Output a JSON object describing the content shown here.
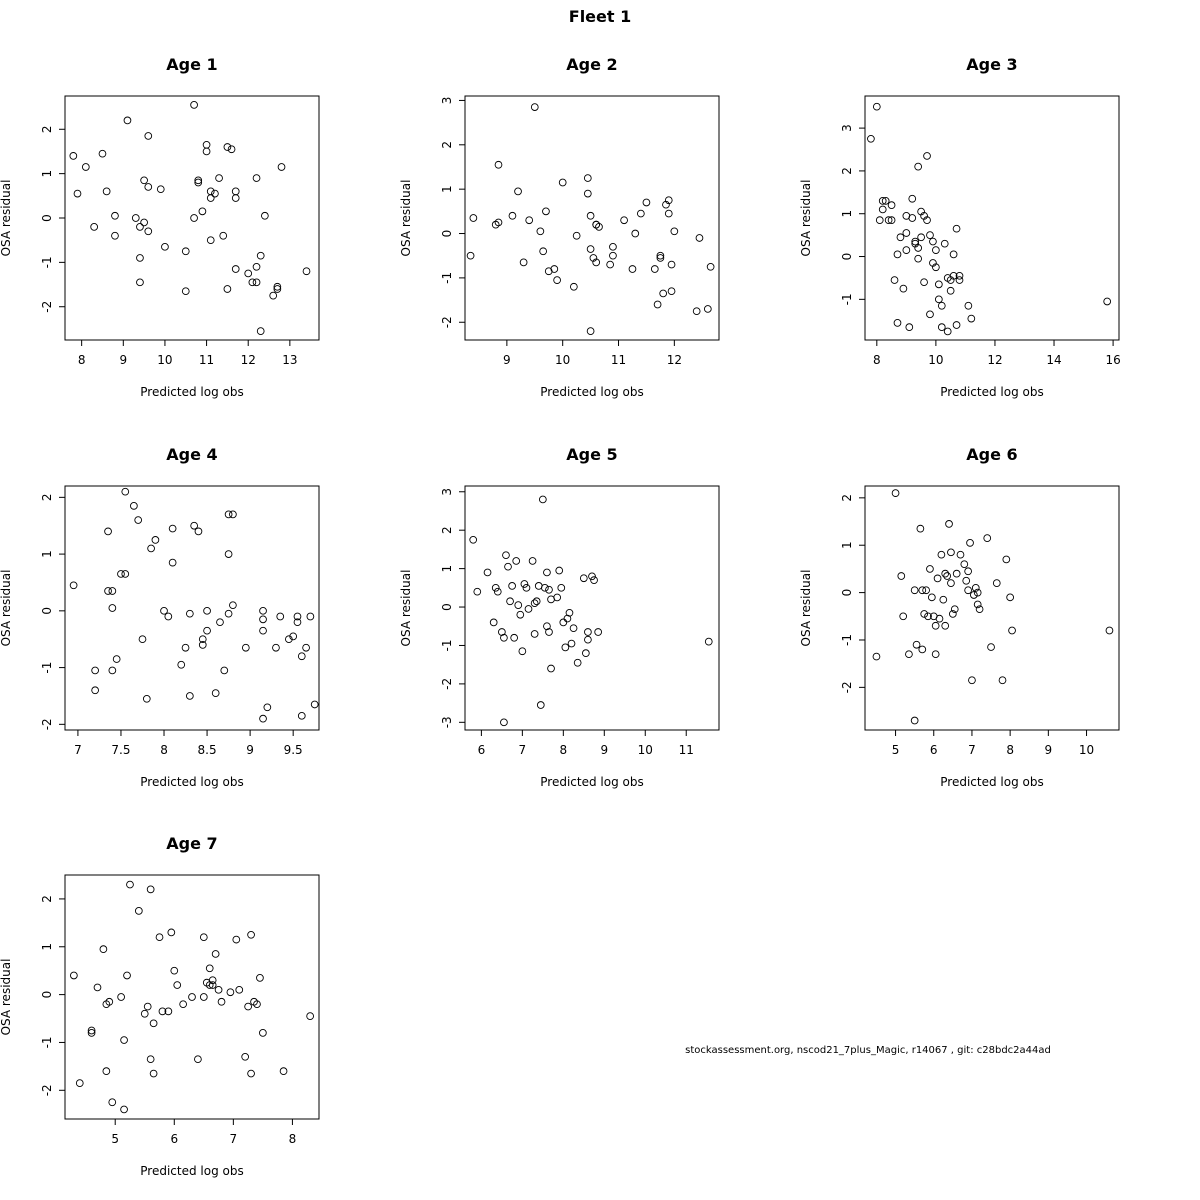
{
  "figure": {
    "title": "Fleet 1",
    "footer": "stockassessment.org, nscod21_7plus_Magic, r14067 , git: c28bdc2a44ad"
  },
  "chart_data": [
    {
      "type": "scatter",
      "title": "Age 1",
      "xlabel": "Predicted log obs",
      "ylabel": "OSA residual",
      "xlim": [
        7.6,
        13.7
      ],
      "ylim": [
        -2.75,
        2.75
      ],
      "xticks": [
        8,
        9,
        10,
        11,
        12,
        13
      ],
      "yticks": [
        -2,
        -1,
        0,
        1,
        2
      ],
      "x": [
        7.8,
        7.9,
        8.1,
        8.5,
        8.6,
        8.3,
        8.8,
        8.8,
        9.1,
        9.3,
        9.5,
        9.4,
        9.5,
        9.6,
        9.6,
        9.6,
        9.9,
        9.4,
        9.4,
        10.0,
        10.5,
        10.5,
        10.7,
        10.8,
        10.8,
        10.7,
        10.9,
        11.0,
        11.0,
        11.1,
        11.2,
        11.3,
        11.1,
        11.1,
        11.4,
        11.5,
        11.5,
        11.6,
        11.7,
        11.7,
        11.7,
        12.0,
        12.1,
        12.2,
        12.2,
        12.3,
        12.2,
        12.3,
        12.4,
        12.6,
        12.7,
        12.7,
        12.8,
        13.4
      ],
      "y": [
        1.4,
        0.55,
        1.15,
        1.45,
        0.6,
        -0.2,
        0.05,
        -0.4,
        2.2,
        0.0,
        0.85,
        -0.2,
        -0.1,
        1.85,
        0.7,
        -0.3,
        0.65,
        -0.9,
        -1.45,
        -0.65,
        -1.65,
        -0.75,
        2.55,
        0.8,
        0.85,
        0.0,
        0.15,
        1.5,
        1.65,
        -0.5,
        0.55,
        0.9,
        0.6,
        0.45,
        -0.4,
        1.6,
        -1.6,
        1.55,
        0.6,
        0.45,
        -1.15,
        -1.25,
        -1.45,
        -1.1,
        0.9,
        -0.85,
        -1.45,
        -2.55,
        0.05,
        -1.75,
        -1.6,
        -1.55,
        1.15,
        -1.2
      ]
    },
    {
      "type": "scatter",
      "title": "Age 2",
      "xlabel": "Predicted log obs",
      "ylabel": "OSA residual",
      "xlim": [
        8.25,
        12.8
      ],
      "ylim": [
        -2.4,
        3.1
      ],
      "xticks": [
        9,
        10,
        11,
        12
      ],
      "yticks": [
        -2,
        -1,
        0,
        1,
        2,
        3
      ],
      "x": [
        8.35,
        8.4,
        8.8,
        8.85,
        8.85,
        9.1,
        9.2,
        9.3,
        9.4,
        9.5,
        9.6,
        9.65,
        9.75,
        9.7,
        9.85,
        9.9,
        10.0,
        10.2,
        10.25,
        10.45,
        10.45,
        10.5,
        10.55,
        10.5,
        10.6,
        10.6,
        10.6,
        10.65,
        10.9,
        10.9,
        10.85,
        11.1,
        11.25,
        11.3,
        11.4,
        11.5,
        11.65,
        11.7,
        11.75,
        11.75,
        11.8,
        11.85,
        11.9,
        11.9,
        11.95,
        11.95,
        12.0,
        12.4,
        12.45,
        12.6,
        12.65,
        10.5
      ],
      "y": [
        -0.5,
        0.35,
        0.2,
        0.25,
        1.55,
        0.4,
        0.95,
        -0.65,
        0.3,
        2.85,
        0.05,
        -0.4,
        -0.85,
        0.5,
        -0.8,
        -1.05,
        1.15,
        -1.2,
        -0.05,
        0.9,
        1.25,
        0.4,
        -0.55,
        -0.35,
        0.2,
        0.2,
        -0.65,
        0.15,
        -0.5,
        -0.3,
        -0.7,
        0.3,
        -0.8,
        0.0,
        0.45,
        0.7,
        -0.8,
        -1.6,
        -0.55,
        -0.5,
        -1.35,
        0.65,
        0.45,
        0.75,
        -0.7,
        -1.3,
        0.05,
        -1.75,
        -0.1,
        -1.7,
        -0.75,
        -2.2
      ]
    },
    {
      "type": "scatter",
      "title": "Age 3",
      "xlabel": "Predicted log obs",
      "ylabel": "OSA residual",
      "xlim": [
        7.6,
        16.2
      ],
      "ylim": [
        -1.95,
        3.75
      ],
      "xticks": [
        8,
        10,
        12,
        14,
        16
      ],
      "yticks": [
        -1,
        0,
        1,
        2,
        3
      ],
      "x": [
        7.8,
        8.0,
        8.1,
        8.2,
        8.2,
        8.3,
        8.4,
        8.5,
        8.5,
        8.6,
        8.7,
        8.7,
        8.8,
        8.9,
        9.0,
        9.0,
        9.1,
        9.2,
        9.3,
        9.3,
        9.4,
        9.4,
        9.5,
        9.5,
        9.6,
        9.7,
        9.7,
        9.8,
        9.8,
        9.9,
        9.9,
        10.0,
        10.0,
        10.1,
        10.1,
        10.2,
        10.2,
        10.3,
        10.4,
        10.4,
        10.5,
        10.5,
        10.6,
        10.6,
        10.7,
        10.7,
        10.8,
        10.8,
        11.1,
        11.2,
        15.8,
        9.0,
        9.2,
        9.4,
        9.6
      ],
      "y": [
        2.75,
        3.5,
        0.85,
        1.1,
        1.3,
        1.3,
        0.85,
        0.85,
        1.2,
        -0.55,
        -1.55,
        0.05,
        0.45,
        -0.75,
        0.15,
        0.55,
        -1.65,
        0.9,
        0.3,
        0.35,
        2.1,
        -0.05,
        0.45,
        1.05,
        0.95,
        2.35,
        0.85,
        0.5,
        -1.35,
        -0.15,
        0.35,
        0.15,
        -0.25,
        -0.65,
        -1.0,
        -1.65,
        -1.15,
        0.3,
        -1.75,
        -0.5,
        -0.55,
        -0.8,
        -0.45,
        0.05,
        -1.6,
        0.65,
        -0.55,
        -0.45,
        -1.15,
        -1.45,
        -1.05,
        0.95,
        1.35,
        0.2,
        -0.6
      ]
    },
    {
      "type": "scatter",
      "title": "Age 4",
      "xlabel": "Predicted log obs",
      "ylabel": "OSA residual",
      "xlim": [
        6.85,
        9.8
      ],
      "ylim": [
        -2.1,
        2.2
      ],
      "xticks": [
        7.0,
        7.5,
        8.0,
        8.5,
        9.0,
        9.5
      ],
      "yticks": [
        -2,
        -1,
        0,
        1,
        2
      ],
      "x": [
        6.95,
        7.2,
        7.2,
        7.35,
        7.35,
        7.4,
        7.4,
        7.4,
        7.45,
        7.5,
        7.55,
        7.55,
        7.65,
        7.7,
        7.75,
        7.8,
        7.85,
        7.9,
        8.0,
        8.05,
        8.1,
        8.1,
        8.2,
        8.25,
        8.3,
        8.3,
        8.35,
        8.4,
        8.45,
        8.45,
        8.5,
        8.5,
        8.6,
        8.65,
        8.7,
        8.75,
        8.75,
        8.75,
        8.8,
        8.8,
        8.95,
        9.15,
        9.15,
        9.15,
        9.15,
        9.2,
        9.3,
        9.35,
        9.45,
        9.5,
        9.55,
        9.55,
        9.6,
        9.6,
        9.65,
        9.7,
        9.75
      ],
      "y": [
        0.45,
        -1.4,
        -1.05,
        1.4,
        0.35,
        0.05,
        0.35,
        -1.05,
        -0.85,
        0.65,
        2.1,
        0.65,
        1.85,
        1.6,
        -0.5,
        -1.55,
        1.1,
        1.25,
        0.0,
        -0.1,
        1.45,
        0.85,
        -0.95,
        -0.65,
        -0.05,
        -1.5,
        1.5,
        1.4,
        -0.5,
        -0.6,
        0.0,
        -0.35,
        -1.45,
        -0.2,
        -1.05,
        1.0,
        1.7,
        -0.05,
        0.1,
        1.7,
        -0.65,
        -1.9,
        -0.35,
        -0.15,
        0.0,
        -1.7,
        -0.65,
        -0.1,
        -0.5,
        -0.45,
        -0.2,
        -0.1,
        -1.85,
        -0.8,
        -0.65,
        -0.1,
        -1.65
      ]
    },
    {
      "type": "scatter",
      "title": "Age 5",
      "xlabel": "Predicted log obs",
      "ylabel": "OSA residual",
      "xlim": [
        5.6,
        11.8
      ],
      "ylim": [
        -3.2,
        3.15
      ],
      "xticks": [
        6,
        7,
        8,
        9,
        10,
        11
      ],
      "yticks": [
        -3,
        -2,
        -1,
        0,
        1,
        2,
        3
      ],
      "x": [
        5.8,
        5.9,
        6.15,
        6.3,
        6.35,
        6.4,
        6.5,
        6.55,
        6.6,
        6.65,
        6.7,
        6.75,
        6.8,
        6.85,
        6.9,
        6.95,
        7.0,
        7.05,
        7.1,
        7.15,
        7.25,
        7.3,
        7.3,
        7.35,
        7.4,
        7.45,
        7.5,
        7.55,
        7.6,
        7.6,
        7.65,
        7.65,
        7.7,
        7.7,
        7.85,
        7.9,
        7.95,
        8.0,
        8.05,
        8.1,
        8.15,
        8.2,
        8.25,
        8.35,
        8.5,
        8.55,
        8.6,
        8.6,
        8.7,
        8.75,
        8.85,
        11.55,
        6.55
      ],
      "y": [
        1.75,
        0.4,
        0.9,
        -0.4,
        0.5,
        0.4,
        -0.65,
        -0.8,
        1.35,
        1.05,
        0.15,
        0.55,
        -0.8,
        1.2,
        0.05,
        -0.2,
        -1.15,
        0.6,
        0.5,
        -0.05,
        1.2,
        -0.7,
        0.1,
        0.15,
        0.55,
        -2.55,
        2.8,
        0.5,
        -0.5,
        0.9,
        0.45,
        -0.65,
        0.2,
        -1.6,
        0.25,
        0.95,
        0.5,
        -0.4,
        -1.05,
        -0.3,
        -0.15,
        -0.95,
        -0.55,
        -1.45,
        0.75,
        -1.2,
        -0.65,
        -0.85,
        0.8,
        0.7,
        -0.65,
        -0.9,
        -3.0
      ]
    },
    {
      "type": "scatter",
      "title": "Age 6",
      "xlabel": "Predicted log obs",
      "ylabel": "OSA residual",
      "xlim": [
        4.2,
        10.85
      ],
      "ylim": [
        -2.9,
        2.25
      ],
      "xticks": [
        5,
        6,
        7,
        8,
        9,
        10
      ],
      "yticks": [
        -2,
        -1,
        0,
        1,
        2
      ],
      "x": [
        4.5,
        5.0,
        5.15,
        5.2,
        5.35,
        5.5,
        5.5,
        5.55,
        5.65,
        5.7,
        5.75,
        5.8,
        5.85,
        5.9,
        5.95,
        6.0,
        6.05,
        6.1,
        6.15,
        6.2,
        6.25,
        6.3,
        6.35,
        6.4,
        6.45,
        6.5,
        6.55,
        6.6,
        6.7,
        6.8,
        6.85,
        6.9,
        6.95,
        7.0,
        7.05,
        7.1,
        7.15,
        7.2,
        7.4,
        7.5,
        7.65,
        7.8,
        7.9,
        8.0,
        8.05,
        10.6,
        5.7,
        6.05,
        6.3,
        6.45,
        6.9,
        7.15
      ],
      "y": [
        -1.35,
        2.1,
        0.35,
        -0.5,
        -1.3,
        -2.7,
        0.05,
        -1.1,
        1.35,
        -1.2,
        -0.45,
        0.05,
        -0.5,
        0.5,
        -0.1,
        -0.5,
        -1.3,
        0.3,
        -0.55,
        0.8,
        -0.15,
        0.4,
        0.35,
        1.45,
        0.85,
        -0.45,
        -0.35,
        0.4,
        0.8,
        0.6,
        0.25,
        0.45,
        1.05,
        -1.85,
        -0.05,
        0.1,
        -0.25,
        -0.35,
        1.15,
        -1.15,
        0.2,
        -1.85,
        0.7,
        -0.1,
        -0.8,
        -0.8,
        0.05,
        -0.7,
        -0.7,
        0.2,
        0.05,
        0.0
      ]
    },
    {
      "type": "scatter",
      "title": "Age 7",
      "xlabel": "Predicted log obs",
      "ylabel": "OSA residual",
      "xlim": [
        4.15,
        8.45
      ],
      "ylim": [
        -2.6,
        2.5
      ],
      "xticks": [
        5,
        6,
        7,
        8
      ],
      "yticks": [
        -2,
        -1,
        0,
        1,
        2
      ],
      "x": [
        4.3,
        4.4,
        4.6,
        4.6,
        4.7,
        4.8,
        4.85,
        4.85,
        4.9,
        4.95,
        5.1,
        5.15,
        5.2,
        5.25,
        5.4,
        5.5,
        5.55,
        5.6,
        5.6,
        5.65,
        5.65,
        5.75,
        5.8,
        5.9,
        5.95,
        6.0,
        6.05,
        6.15,
        6.3,
        6.4,
        6.5,
        6.5,
        6.55,
        6.6,
        6.65,
        6.65,
        6.7,
        6.75,
        6.8,
        6.95,
        7.05,
        7.1,
        7.2,
        7.25,
        7.3,
        7.3,
        7.35,
        7.4,
        7.45,
        7.5,
        7.85,
        8.3,
        5.15,
        6.6
      ],
      "y": [
        0.4,
        -1.85,
        -0.75,
        -0.8,
        0.15,
        0.95,
        -0.2,
        -1.6,
        -0.15,
        -2.25,
        -0.05,
        -0.95,
        0.4,
        2.3,
        1.75,
        -0.4,
        -0.25,
        -1.35,
        2.2,
        -1.65,
        -0.6,
        1.2,
        -0.35,
        -0.35,
        1.3,
        0.5,
        0.2,
        -0.2,
        -0.05,
        -1.35,
        1.2,
        -0.05,
        0.25,
        0.55,
        0.3,
        0.2,
        0.85,
        0.1,
        -0.15,
        0.05,
        1.15,
        0.1,
        -1.3,
        -0.25,
        1.25,
        -1.65,
        -0.15,
        -0.2,
        0.35,
        -0.8,
        -1.6,
        -0.45,
        -2.4,
        0.2
      ]
    }
  ]
}
